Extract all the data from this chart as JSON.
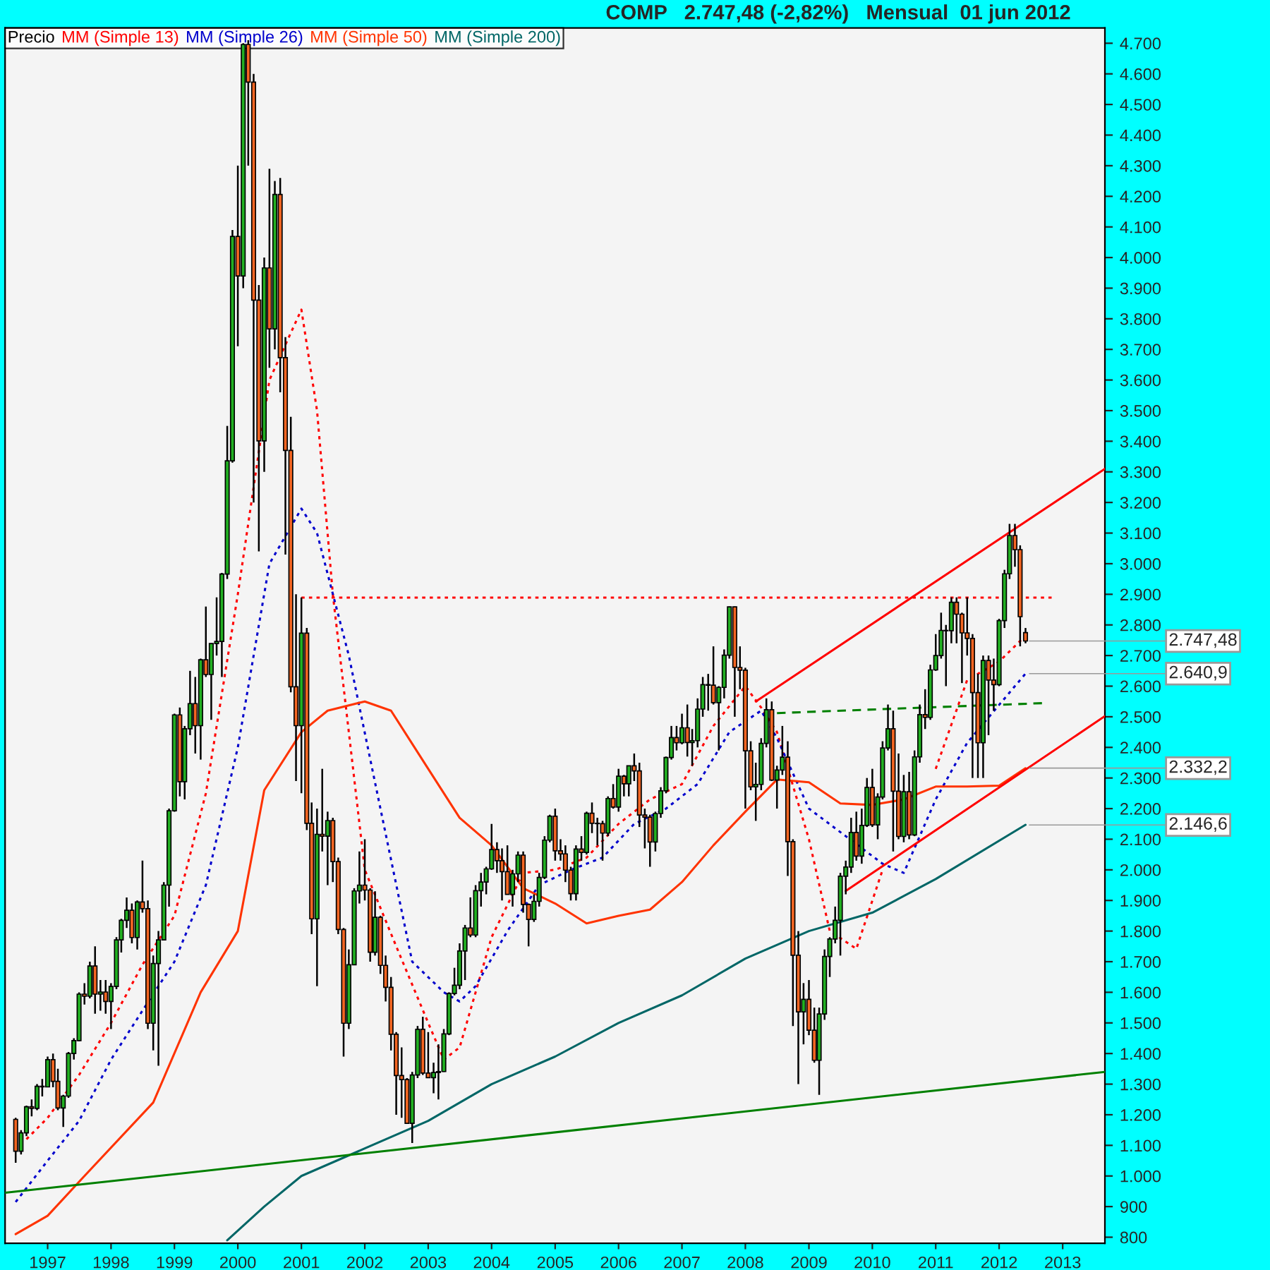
{
  "chart_data": {
    "type": "candlestick",
    "title": "COMP   2.747,48 (-2,82%)   Mensual  01 jun 2012",
    "legend": "top left",
    "grid": false,
    "xlim": [
      "1996-05",
      "2013-09"
    ],
    "xticks": [
      {
        "value": "1997-01",
        "label": "1997"
      },
      {
        "value": "1998-01",
        "label": "1998"
      },
      {
        "value": "1999-01",
        "label": "1999"
      },
      {
        "value": "2000-01",
        "label": "2000"
      },
      {
        "value": "2001-01",
        "label": "2001"
      },
      {
        "value": "2002-01",
        "label": "2002"
      },
      {
        "value": "2003-01",
        "label": "2003"
      },
      {
        "value": "2004-01",
        "label": "2004"
      },
      {
        "value": "2005-01",
        "label": "2005"
      },
      {
        "value": "2006-01",
        "label": "2006"
      },
      {
        "value": "2007-01",
        "label": "2007"
      },
      {
        "value": "2008-01",
        "label": "2008"
      },
      {
        "value": "2009-01",
        "label": "2009"
      },
      {
        "value": "2010-01",
        "label": "2010"
      },
      {
        "value": "2011-01",
        "label": "2011"
      },
      {
        "value": "2012-01",
        "label": "2012"
      },
      {
        "value": "2013-01",
        "label": "2013"
      }
    ],
    "ylim": [
      780,
      4750
    ],
    "yticks": [
      {
        "value": 800,
        "label": "800"
      },
      {
        "value": 900,
        "label": "900"
      },
      {
        "value": 1000,
        "label": "1.000"
      },
      {
        "value": 1100,
        "label": "1.100"
      },
      {
        "value": 1200,
        "label": "1.200"
      },
      {
        "value": 1300,
        "label": "1.300"
      },
      {
        "value": 1400,
        "label": "1.400"
      },
      {
        "value": 1500,
        "label": "1.500"
      },
      {
        "value": 1600,
        "label": "1.600"
      },
      {
        "value": 1700,
        "label": "1.700"
      },
      {
        "value": 1800,
        "label": "1.800"
      },
      {
        "value": 1900,
        "label": "1.900"
      },
      {
        "value": 2000,
        "label": "2.000"
      },
      {
        "value": 2100,
        "label": "2.100"
      },
      {
        "value": 2200,
        "label": "2.200"
      },
      {
        "value": 2300,
        "label": "2.300"
      },
      {
        "value": 2400,
        "label": "2.400"
      },
      {
        "value": 2500,
        "label": "2.500"
      },
      {
        "value": 2600,
        "label": "2.600"
      },
      {
        "value": 2700,
        "label": "2.700"
      },
      {
        "value": 2800,
        "label": "2.800"
      },
      {
        "value": 2900,
        "label": "2.900"
      },
      {
        "value": 3000,
        "label": "3.000"
      },
      {
        "value": 3100,
        "label": "3.100"
      },
      {
        "value": 3200,
        "label": "3.200"
      },
      {
        "value": 3300,
        "label": "3.300"
      },
      {
        "value": 3400,
        "label": "3.400"
      },
      {
        "value": 3500,
        "label": "3.500"
      },
      {
        "value": 3600,
        "label": "3.600"
      },
      {
        "value": 3700,
        "label": "3.700"
      },
      {
        "value": 3800,
        "label": "3.800"
      },
      {
        "value": 3900,
        "label": "3.900"
      },
      {
        "value": 4000,
        "label": "4.000"
      },
      {
        "value": 4100,
        "label": "4.100"
      },
      {
        "value": 4200,
        "label": "4.200"
      },
      {
        "value": 4300,
        "label": "4.300"
      },
      {
        "value": 4400,
        "label": "4.400"
      },
      {
        "value": 4500,
        "label": "4.500"
      },
      {
        "value": 4600,
        "label": "4.600"
      },
      {
        "value": 4700,
        "label": "4.700"
      }
    ],
    "annotations": [
      {
        "text": "2.747,48",
        "x": "2012-06",
        "y": 2747.48
      },
      {
        "text": "2.640,9",
        "x": "2012-06",
        "y": 2640.9
      },
      {
        "text": "2.332,2",
        "x": "2012-06",
        "y": 2332.2
      },
      {
        "text": "2.146,6",
        "x": "2012-06",
        "y": 2146.6
      }
    ],
    "series": [
      {
        "name": "Precio",
        "color": "#000000",
        "x": [
          "1996-07",
          "1996-08",
          "1996-09",
          "1996-10",
          "1996-11",
          "1996-12",
          "1997-01",
          "1997-02",
          "1997-03",
          "1997-04",
          "1997-05",
          "1997-06",
          "1997-07",
          "1997-08",
          "1997-09",
          "1997-10",
          "1997-11",
          "1997-12",
          "1998-01",
          "1998-02",
          "1998-03",
          "1998-04",
          "1998-05",
          "1998-06",
          "1998-07",
          "1998-08",
          "1998-09",
          "1998-10",
          "1998-11",
          "1998-12",
          "1999-01",
          "1999-02",
          "1999-03",
          "1999-04",
          "1999-05",
          "1999-06",
          "1999-07",
          "1999-08",
          "1999-09",
          "1999-10",
          "1999-11",
          "1999-12",
          "2000-01",
          "2000-02",
          "2000-03",
          "2000-04",
          "2000-05",
          "2000-06",
          "2000-07",
          "2000-08",
          "2000-09",
          "2000-10",
          "2000-11",
          "2000-12",
          "2001-01",
          "2001-02",
          "2001-03",
          "2001-04",
          "2001-05",
          "2001-06",
          "2001-07",
          "2001-08",
          "2001-09",
          "2001-10",
          "2001-11",
          "2001-12",
          "2002-01",
          "2002-02",
          "2002-03",
          "2002-04",
          "2002-05",
          "2002-06",
          "2002-07",
          "2002-08",
          "2002-09",
          "2002-10",
          "2002-11",
          "2002-12",
          "2003-01",
          "2003-02",
          "2003-03",
          "2003-04",
          "2003-05",
          "2003-06",
          "2003-07",
          "2003-08",
          "2003-09",
          "2003-10",
          "2003-11",
          "2003-12",
          "2004-01",
          "2004-02",
          "2004-03",
          "2004-04",
          "2004-05",
          "2004-06",
          "2004-07",
          "2004-08",
          "2004-09",
          "2004-10",
          "2004-11",
          "2004-12",
          "2005-01",
          "2005-02",
          "2005-03",
          "2005-04",
          "2005-05",
          "2005-06",
          "2005-07",
          "2005-08",
          "2005-09",
          "2005-10",
          "2005-11",
          "2005-12",
          "2006-01",
          "2006-02",
          "2006-03",
          "2006-04",
          "2006-05",
          "2006-06",
          "2006-07",
          "2006-08",
          "2006-09",
          "2006-10",
          "2006-11",
          "2006-12",
          "2007-01",
          "2007-02",
          "2007-03",
          "2007-04",
          "2007-05",
          "2007-06",
          "2007-07",
          "2007-08",
          "2007-09",
          "2007-10",
          "2007-11",
          "2007-12",
          "2008-01",
          "2008-02",
          "2008-03",
          "2008-04",
          "2008-05",
          "2008-06",
          "2008-07",
          "2008-08",
          "2008-09",
          "2008-10",
          "2008-11",
          "2008-12",
          "2009-01",
          "2009-02",
          "2009-03",
          "2009-04",
          "2009-05",
          "2009-06",
          "2009-07",
          "2009-08",
          "2009-09",
          "2009-10",
          "2009-11",
          "2009-12",
          "2010-01",
          "2010-02",
          "2010-03",
          "2010-04",
          "2010-05",
          "2010-06",
          "2010-07",
          "2010-08",
          "2010-09",
          "2010-10",
          "2010-11",
          "2010-12",
          "2011-01",
          "2011-02",
          "2011-03",
          "2011-04",
          "2011-05",
          "2011-06",
          "2011-07",
          "2011-08",
          "2011-09",
          "2011-10",
          "2011-11",
          "2011-12",
          "2012-01",
          "2012-02",
          "2012-03",
          "2012-04",
          "2012-05",
          "2012-06"
        ],
        "ohlc": [
          [
            1185,
            1190,
            1043,
            1081
          ],
          [
            1081,
            1150,
            1070,
            1141
          ],
          [
            1141,
            1230,
            1130,
            1226
          ],
          [
            1226,
            1250,
            1195,
            1221
          ],
          [
            1221,
            1300,
            1215,
            1293
          ],
          [
            1293,
            1317,
            1260,
            1291
          ],
          [
            1291,
            1390,
            1290,
            1380
          ],
          [
            1380,
            1400,
            1290,
            1309
          ],
          [
            1309,
            1350,
            1215,
            1222
          ],
          [
            1222,
            1265,
            1160,
            1261
          ],
          [
            1261,
            1405,
            1255,
            1400
          ],
          [
            1400,
            1450,
            1380,
            1442
          ],
          [
            1442,
            1600,
            1440,
            1594
          ],
          [
            1594,
            1630,
            1560,
            1587
          ],
          [
            1587,
            1700,
            1580,
            1686
          ],
          [
            1686,
            1750,
            1530,
            1594
          ],
          [
            1594,
            1640,
            1540,
            1601
          ],
          [
            1601,
            1640,
            1530,
            1570
          ],
          [
            1570,
            1630,
            1480,
            1619
          ],
          [
            1619,
            1780,
            1610,
            1771
          ],
          [
            1771,
            1840,
            1730,
            1835
          ],
          [
            1835,
            1910,
            1810,
            1868
          ],
          [
            1868,
            1890,
            1760,
            1779
          ],
          [
            1779,
            1900,
            1740,
            1895
          ],
          [
            1895,
            2030,
            1860,
            1873
          ],
          [
            1873,
            1900,
            1480,
            1499
          ],
          [
            1499,
            1720,
            1410,
            1694
          ],
          [
            1694,
            1800,
            1360,
            1771
          ],
          [
            1771,
            1960,
            1770,
            1950
          ],
          [
            1950,
            2200,
            1880,
            2193
          ],
          [
            2193,
            2510,
            2190,
            2506
          ],
          [
            2506,
            2530,
            2240,
            2288
          ],
          [
            2288,
            2470,
            2230,
            2461
          ],
          [
            2461,
            2650,
            2440,
            2543
          ],
          [
            2543,
            2630,
            2380,
            2471
          ],
          [
            2471,
            2690,
            2360,
            2686
          ],
          [
            2686,
            2860,
            2630,
            2638
          ],
          [
            2638,
            2740,
            2490,
            2739
          ],
          [
            2739,
            2890,
            2700,
            2746
          ],
          [
            2746,
            2970,
            2630,
            2966
          ],
          [
            2966,
            3450,
            2950,
            3336
          ],
          [
            3336,
            4090,
            3330,
            4069
          ],
          [
            4069,
            4300,
            3710,
            3940
          ],
          [
            3940,
            4700,
            3900,
            4696
          ],
          [
            4696,
            4710,
            4300,
            4573
          ],
          [
            4573,
            4600,
            3200,
            3861
          ],
          [
            3861,
            3910,
            3040,
            3401
          ],
          [
            3401,
            4000,
            3300,
            3966
          ],
          [
            3966,
            4290,
            3640,
            3767
          ],
          [
            3767,
            4250,
            3700,
            4206
          ],
          [
            4206,
            4260,
            3560,
            3673
          ],
          [
            3673,
            3740,
            3030,
            3370
          ],
          [
            3370,
            3480,
            2580,
            2598
          ],
          [
            2598,
            2900,
            2290,
            2471
          ],
          [
            2471,
            2890,
            2250,
            2773
          ],
          [
            2773,
            2790,
            2130,
            2152
          ],
          [
            2152,
            2220,
            1790,
            1840
          ],
          [
            1840,
            2200,
            1620,
            2116
          ],
          [
            2116,
            2330,
            2060,
            2110
          ],
          [
            2110,
            2190,
            1950,
            2161
          ],
          [
            2161,
            2170,
            1960,
            2027
          ],
          [
            2027,
            2040,
            1790,
            1805
          ],
          [
            1805,
            1810,
            1390,
            1499
          ],
          [
            1499,
            1740,
            1480,
            1690
          ],
          [
            1690,
            1940,
            1690,
            1931
          ],
          [
            1931,
            2060,
            1890,
            1950
          ],
          [
            1950,
            2100,
            1900,
            1934
          ],
          [
            1934,
            1940,
            1700,
            1731
          ],
          [
            1731,
            1930,
            1720,
            1845
          ],
          [
            1845,
            1850,
            1660,
            1688
          ],
          [
            1688,
            1720,
            1570,
            1616
          ],
          [
            1616,
            1650,
            1410,
            1463
          ],
          [
            1463,
            1470,
            1200,
            1328
          ],
          [
            1328,
            1420,
            1190,
            1315
          ],
          [
            1315,
            1320,
            1170,
            1172
          ],
          [
            1172,
            1340,
            1108,
            1330
          ],
          [
            1330,
            1490,
            1320,
            1479
          ],
          [
            1479,
            1520,
            1330,
            1336
          ],
          [
            1336,
            1470,
            1320,
            1321
          ],
          [
            1321,
            1370,
            1270,
            1338
          ],
          [
            1338,
            1430,
            1250,
            1341
          ],
          [
            1341,
            1480,
            1340,
            1464
          ],
          [
            1464,
            1600,
            1460,
            1596
          ],
          [
            1596,
            1680,
            1590,
            1623
          ],
          [
            1623,
            1760,
            1610,
            1735
          ],
          [
            1735,
            1820,
            1640,
            1810
          ],
          [
            1810,
            1910,
            1780,
            1787
          ],
          [
            1787,
            1950,
            1780,
            1932
          ],
          [
            1932,
            1990,
            1880,
            1960
          ],
          [
            1960,
            2010,
            1920,
            2003
          ],
          [
            2003,
            2150,
            2000,
            2066
          ],
          [
            2066,
            2090,
            1990,
            2030
          ],
          [
            2030,
            2070,
            1900,
            1994
          ],
          [
            1994,
            2080,
            1920,
            1920
          ],
          [
            1920,
            2000,
            1880,
            1987
          ],
          [
            1987,
            2060,
            1960,
            2048
          ],
          [
            2048,
            2060,
            1860,
            1887
          ],
          [
            1887,
            1890,
            1750,
            1838
          ],
          [
            1838,
            1920,
            1830,
            1897
          ],
          [
            1897,
            1990,
            1880,
            1975
          ],
          [
            1975,
            2110,
            1970,
            2097
          ],
          [
            2097,
            2180,
            2090,
            2175
          ],
          [
            2175,
            2200,
            2030,
            2062
          ],
          [
            2062,
            2100,
            2030,
            2052
          ],
          [
            2052,
            2080,
            1960,
            1999
          ],
          [
            1999,
            2010,
            1900,
            1922
          ],
          [
            1922,
            2080,
            1900,
            2068
          ],
          [
            2068,
            2110,
            2030,
            2057
          ],
          [
            2057,
            2190,
            2050,
            2185
          ],
          [
            2185,
            2220,
            2120,
            2152
          ],
          [
            2152,
            2170,
            2080,
            2151
          ],
          [
            2151,
            2160,
            2030,
            2120
          ],
          [
            2120,
            2240,
            2110,
            2233
          ],
          [
            2233,
            2280,
            2200,
            2205
          ],
          [
            2205,
            2330,
            2190,
            2306
          ],
          [
            2306,
            2310,
            2240,
            2281
          ],
          [
            2281,
            2340,
            2240,
            2340
          ],
          [
            2340,
            2380,
            2290,
            2323
          ],
          [
            2323,
            2350,
            2140,
            2179
          ],
          [
            2179,
            2200,
            2070,
            2172
          ],
          [
            2172,
            2180,
            2010,
            2091
          ],
          [
            2091,
            2190,
            2060,
            2184
          ],
          [
            2184,
            2270,
            2170,
            2258
          ],
          [
            2258,
            2370,
            2250,
            2367
          ],
          [
            2367,
            2470,
            2360,
            2432
          ],
          [
            2432,
            2470,
            2390,
            2415
          ],
          [
            2415,
            2510,
            2410,
            2464
          ],
          [
            2464,
            2540,
            2370,
            2416
          ],
          [
            2416,
            2460,
            2340,
            2422
          ],
          [
            2422,
            2560,
            2400,
            2525
          ],
          [
            2525,
            2630,
            2500,
            2605
          ],
          [
            2605,
            2640,
            2520,
            2603
          ],
          [
            2603,
            2730,
            2540,
            2546
          ],
          [
            2546,
            2600,
            2390,
            2596
          ],
          [
            2596,
            2720,
            2560,
            2701
          ],
          [
            2701,
            2860,
            2690,
            2859
          ],
          [
            2859,
            2860,
            2500,
            2661
          ],
          [
            2661,
            2730,
            2590,
            2652
          ],
          [
            2652,
            2660,
            2200,
            2389
          ],
          [
            2389,
            2420,
            2260,
            2271
          ],
          [
            2271,
            2350,
            2160,
            2279
          ],
          [
            2279,
            2430,
            2260,
            2413
          ],
          [
            2413,
            2560,
            2400,
            2523
          ],
          [
            2523,
            2550,
            2290,
            2293
          ],
          [
            2293,
            2340,
            2200,
            2326
          ],
          [
            2326,
            2470,
            2310,
            2368
          ],
          [
            2368,
            2420,
            1980,
            2092
          ],
          [
            2092,
            2100,
            1490,
            1721
          ],
          [
            1721,
            1800,
            1300,
            1536
          ],
          [
            1536,
            1630,
            1430,
            1577
          ],
          [
            1577,
            1640,
            1460,
            1476
          ],
          [
            1476,
            1550,
            1370,
            1378
          ],
          [
            1378,
            1550,
            1265,
            1529
          ],
          [
            1529,
            1740,
            1510,
            1717
          ],
          [
            1717,
            1780,
            1650,
            1774
          ],
          [
            1774,
            1880,
            1760,
            1835
          ],
          [
            1835,
            1990,
            1720,
            1979
          ],
          [
            1979,
            2030,
            1920,
            2009
          ],
          [
            2009,
            2170,
            1990,
            2122
          ],
          [
            2122,
            2190,
            2030,
            2045
          ],
          [
            2045,
            2200,
            2020,
            2145
          ],
          [
            2145,
            2300,
            2140,
            2269
          ],
          [
            2269,
            2330,
            2140,
            2147
          ],
          [
            2147,
            2250,
            2100,
            2238
          ],
          [
            2238,
            2420,
            2230,
            2398
          ],
          [
            2398,
            2540,
            2390,
            2461
          ],
          [
            2461,
            2520,
            2060,
            2257
          ],
          [
            2257,
            2380,
            2100,
            2109
          ],
          [
            2109,
            2310,
            2090,
            2255
          ],
          [
            2255,
            2320,
            2100,
            2114
          ],
          [
            2114,
            2390,
            2110,
            2369
          ],
          [
            2369,
            2540,
            2350,
            2507
          ],
          [
            2507,
            2590,
            2460,
            2498
          ],
          [
            2498,
            2670,
            2490,
            2653
          ],
          [
            2653,
            2770,
            2650,
            2700
          ],
          [
            2700,
            2840,
            2690,
            2782
          ],
          [
            2782,
            2800,
            2600,
            2781
          ],
          [
            2781,
            2890,
            2740,
            2874
          ],
          [
            2874,
            2890,
            2740,
            2835
          ],
          [
            2835,
            2840,
            2610,
            2774
          ],
          [
            2774,
            2890,
            2700,
            2756
          ],
          [
            2756,
            2770,
            2300,
            2579
          ],
          [
            2579,
            2640,
            2300,
            2415
          ],
          [
            2415,
            2700,
            2300,
            2684
          ],
          [
            2684,
            2700,
            2440,
            2620
          ],
          [
            2620,
            2690,
            2520,
            2605
          ],
          [
            2605,
            2820,
            2600,
            2814
          ],
          [
            2814,
            2980,
            2790,
            2967
          ],
          [
            2967,
            3130,
            2950,
            3092
          ],
          [
            3092,
            3130,
            2990,
            3046
          ],
          [
            3046,
            3060,
            2730,
            2827
          ],
          [
            2775,
            2790,
            2740,
            2747.48
          ]
        ],
        "colors": [
          "#f26522",
          "#22b022",
          "#22b022",
          "#f26522",
          "#22b022",
          "#f26522",
          "#22b022",
          "#f26522",
          "#f26522",
          "#22b022",
          "#22b022",
          "#22b022",
          "#22b022",
          "#f26522",
          "#22b022",
          "#f26522",
          "#22b022",
          "#f26522",
          "#22b022",
          "#22b022",
          "#22b022",
          "#22b022",
          "#f26522",
          "#22b022",
          "#f26522",
          "#f26522",
          "#22b022",
          "#22b022",
          "#22b022",
          "#22b022",
          "#22b022",
          "#f26522",
          "#22b022",
          "#22b022",
          "#f26522",
          "#22b022",
          "#f26522",
          "#22b022",
          "#22b022",
          "#22b022",
          "#22b022",
          "#22b022",
          "#f26522",
          "#22b022",
          "#f26522",
          "#f26522",
          "#f26522",
          "#22b022",
          "#f26522",
          "#22b022",
          "#f26522",
          "#f26522",
          "#f26522",
          "#f26522",
          "#22b022",
          "#f26522",
          "#f26522",
          "#22b022",
          "#f26522",
          "#22b022",
          "#f26522",
          "#f26522",
          "#f26522",
          "#22b022",
          "#22b022",
          "#22b022",
          "#f26522",
          "#f26522",
          "#22b022",
          "#f26522",
          "#f26522",
          "#f26522",
          "#f26522",
          "#f26522",
          "#f26522",
          "#22b022",
          "#22b022",
          "#f26522",
          "#f26522",
          "#22b022",
          "#22b022",
          "#22b022",
          "#22b022",
          "#22b022",
          "#22b022",
          "#22b022",
          "#f26522",
          "#22b022",
          "#22b022",
          "#22b022",
          "#22b022",
          "#f26522",
          "#f26522",
          "#f26522",
          "#22b022",
          "#22b022",
          "#f26522",
          "#f26522",
          "#22b022",
          "#22b022",
          "#22b022",
          "#22b022",
          "#f26522",
          "#f26522",
          "#f26522",
          "#f26522",
          "#22b022",
          "#f26522",
          "#22b022",
          "#f26522",
          "#f26522",
          "#f26522",
          "#22b022",
          "#f26522",
          "#22b022",
          "#f26522",
          "#22b022",
          "#f26522",
          "#f26522",
          "#f26522",
          "#f26522",
          "#22b022",
          "#22b022",
          "#22b022",
          "#22b022",
          "#f26522",
          "#22b022",
          "#f26522",
          "#22b022",
          "#22b022",
          "#22b022",
          "#f26522",
          "#f26522",
          "#22b022",
          "#22b022",
          "#22b022",
          "#f26522",
          "#f26522",
          "#f26522",
          "#f26522",
          "#22b022",
          "#22b022",
          "#22b022",
          "#f26522",
          "#22b022",
          "#22b022",
          "#f26522",
          "#f26522",
          "#f26522",
          "#22b022",
          "#f26522",
          "#f26522",
          "#22b022",
          "#22b022",
          "#22b022",
          "#22b022",
          "#22b022",
          "#22b022",
          "#22b022",
          "#f26522",
          "#22b022",
          "#22b022",
          "#f26522",
          "#22b022",
          "#22b022",
          "#22b022",
          "#f26522",
          "#f26522",
          "#22b022",
          "#f26522",
          "#22b022",
          "#22b022",
          "#f26522",
          "#22b022",
          "#22b022",
          "#22b022",
          "#f26522",
          "#22b022",
          "#f26522",
          "#f26522",
          "#f26522",
          "#f26522",
          "#f26522",
          "#22b022",
          "#f26522",
          "#f26522",
          "#22b022",
          "#22b022",
          "#22b022",
          "#f26522",
          "#f26522",
          "#f26522"
        ]
      },
      {
        "name": "MM (Simple 13)",
        "type": "line",
        "color": "#ff0000",
        "line_style": "dotted",
        "x": [
          "1996-09",
          "1997-01",
          "1997-07",
          "1998-01",
          "1998-07",
          "1999-01",
          "1999-07",
          "2000-01",
          "2000-07",
          "2001-01",
          "2001-04",
          "2001-07",
          "2002-01",
          "2002-07",
          "2003-01",
          "2003-04",
          "2003-07",
          "2004-01",
          "2004-07",
          "2005-01",
          "2005-07",
          "2006-01",
          "2006-07",
          "2007-01",
          "2007-07",
          "2008-01",
          "2008-04",
          "2008-07",
          "2009-01",
          "2009-05",
          "2009-10",
          "2010-03",
          "2010-07",
          "2011-01",
          "2011-07",
          "2012-01",
          "2012-06"
        ],
        "values": [
          1120,
          1190,
          1330,
          1500,
          1690,
          1850,
          2250,
          2900,
          3600,
          3830,
          3500,
          2900,
          2000,
          1750,
          1500,
          1380,
          1420,
          1780,
          1990,
          2000,
          2040,
          2150,
          2230,
          2280,
          2470,
          2600,
          2530,
          2450,
          2100,
          1800,
          1742,
          2000,
          null,
          2330,
          2620,
          2680,
          2765
        ]
      },
      {
        "name": "MM (Simple 26)",
        "type": "line",
        "color": "#0000cc",
        "line_style": "dotted",
        "x": [
          "1996-07",
          "1997-01",
          "1997-07",
          "1998-01",
          "1998-07",
          "1999-01",
          "1999-07",
          "2000-01",
          "2000-07",
          "2001-01",
          "2001-04",
          "2001-10",
          "2002-04",
          "2002-10",
          "2003-04",
          "2003-07",
          "2003-10",
          "2004-04",
          "2004-10",
          "2005-04",
          "2005-10",
          "2006-04",
          "2006-10",
          "2007-04",
          "2007-10",
          "2008-04",
          "2008-07",
          "2009-01",
          "2009-08",
          "2010-03",
          "2010-07",
          "2011-01",
          "2011-07",
          "2012-06"
        ],
        "values": [
          915,
          1050,
          1180,
          1380,
          1540,
          1700,
          1950,
          2400,
          3000,
          3180,
          3100,
          2700,
          2200,
          1700,
          1600,
          1570,
          1620,
          1800,
          1950,
          2000,
          2040,
          2150,
          2200,
          2280,
          2450,
          2520,
          2430,
          2200,
          2110,
          2020,
          1990,
          2230,
          2415,
          2641
        ]
      },
      {
        "name": "MM (Simple 50)",
        "type": "line",
        "color": "#ff3300",
        "line_style": "solid",
        "x": [
          "1996-07",
          "1997-01",
          "1997-08",
          "1998-09",
          "1999-06",
          "2000-01",
          "2000-06",
          "2001-01",
          "2001-06",
          "2002-01",
          "2002-06",
          "2003-01",
          "2003-07",
          "2004-01",
          "2004-07",
          "2005-01",
          "2005-07",
          "2006-01",
          "2006-07",
          "2007-01",
          "2007-07",
          "2008-01",
          "2008-07",
          "2009-01",
          "2009-07",
          "2010-01",
          "2010-07",
          "2011-01",
          "2011-07",
          "2012-01",
          "2012-06"
        ],
        "values": [
          810,
          870,
          1000,
          1240,
          1600,
          1800,
          2260,
          2450,
          2520,
          2550,
          2520,
          2330,
          2170,
          2080,
          1940,
          1890,
          1825,
          1850,
          1870,
          1960,
          2080,
          2190,
          2295,
          2286,
          2217,
          2212,
          2230,
          2272,
          2272,
          2275,
          2332
        ]
      },
      {
        "name": "MM (Simple 200)",
        "type": "line",
        "color": "#006666",
        "line_style": "solid",
        "x": [
          "1999-11",
          "2000-06",
          "2001-01",
          "2002-01",
          "2003-01",
          "2004-01",
          "2005-01",
          "2006-01",
          "2007-01",
          "2008-01",
          "2009-01",
          "2010-01",
          "2011-01",
          "2012-06"
        ],
        "values": [
          790,
          900,
          1000,
          1090,
          1180,
          1300,
          1390,
          1500,
          1590,
          1710,
          1800,
          1860,
          1970,
          2147
        ]
      },
      {
        "type": "line",
        "color": "#008000",
        "line_style": "solid",
        "x": [
          "1996-05",
          "2013-09"
        ],
        "values": [
          945,
          1340
        ]
      },
      {
        "type": "line",
        "color": "#ff0000",
        "line_style": "solid",
        "x": [
          "2008-03",
          "2013-09"
        ],
        "values": [
          2550,
          3310
        ]
      },
      {
        "type": "line",
        "color": "#ff0000",
        "line_style": "solid",
        "x": [
          "2009-08",
          "2013-09"
        ],
        "values": [
          1931,
          2502
        ]
      },
      {
        "type": "line",
        "color": "#ff0000",
        "line_style": "dotted",
        "x": [
          "2001-01",
          "2012-11"
        ],
        "values": [
          2889,
          2889
        ]
      },
      {
        "type": "line",
        "color": "#008000",
        "line_style": "dashed",
        "x": [
          "2008-07",
          "2012-10"
        ],
        "values": [
          2512,
          2545
        ]
      }
    ]
  }
}
